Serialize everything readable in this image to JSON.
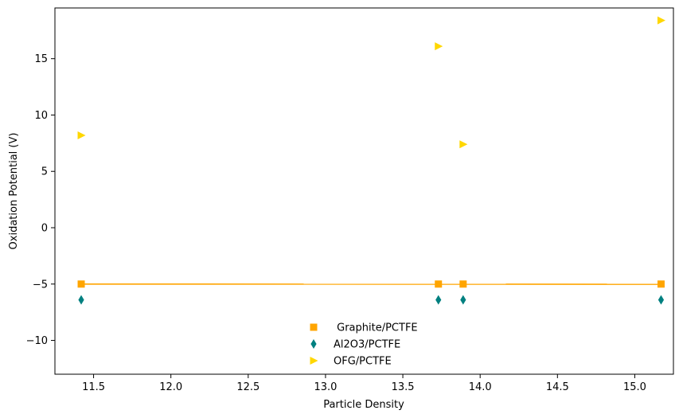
{
  "chart_data": {
    "type": "scatter",
    "title": "",
    "xlabel": "Particle Density",
    "ylabel": "Oxidation Potential (V)",
    "xlim": [
      11.25,
      15.25
    ],
    "ylim": [
      -13.0,
      19.5
    ],
    "xticks": [
      11.5,
      12.0,
      12.5,
      13.0,
      13.5,
      14.0,
      14.5,
      15.0
    ],
    "xtick_labels": [
      "11.5",
      "12.0",
      "12.5",
      "13.0",
      "13.5",
      "14.0",
      "14.5",
      "15.0"
    ],
    "yticks": [
      -10,
      -5,
      0,
      5,
      10,
      15
    ],
    "ytick_labels": [
      "−10",
      "−5",
      "0",
      "5",
      "10",
      "15"
    ],
    "grid": false,
    "legend_position": "bottom-center",
    "series": [
      {
        "name": " Graphite/PCTFE",
        "marker": "square",
        "color": "#FFA500",
        "points": [
          {
            "x": 11.42,
            "y": -5.0
          },
          {
            "x": 13.73,
            "y": -5.0
          },
          {
            "x": 13.89,
            "y": -5.0
          },
          {
            "x": 15.17,
            "y": -5.0
          }
        ]
      },
      {
        "name": "Al2O3/PCTFE",
        "marker": "thin_diamond",
        "color": "#008080",
        "points": [
          {
            "x": 11.42,
            "y": -6.4
          },
          {
            "x": 13.73,
            "y": -6.4
          },
          {
            "x": 13.89,
            "y": -6.4
          },
          {
            "x": 15.17,
            "y": -6.4
          }
        ]
      },
      {
        "name": "OFG/PCTFE",
        "marker": "triangle_right",
        "color": "#FFD700",
        "points": [
          {
            "x": 11.42,
            "y": 8.2
          },
          {
            "x": 13.73,
            "y": 16.1
          },
          {
            "x": 13.89,
            "y": 7.4
          },
          {
            "x": 15.17,
            "y": 18.4
          }
        ]
      }
    ],
    "fit_line": {
      "color": "#FFA500",
      "x": [
        11.42,
        15.17
      ],
      "y": [
        -5.0,
        -5.02
      ]
    }
  }
}
